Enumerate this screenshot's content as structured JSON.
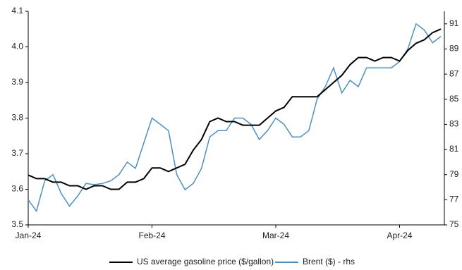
{
  "chart_data": {
    "type": "line",
    "categories": [
      "Jan-24",
      null,
      null,
      null,
      null,
      null,
      null,
      null,
      null,
      null,
      null,
      null,
      null,
      null,
      null,
      "Feb-24",
      null,
      null,
      null,
      null,
      null,
      null,
      null,
      null,
      null,
      null,
      null,
      null,
      null,
      null,
      "Mar-24",
      null,
      null,
      null,
      null,
      null,
      null,
      null,
      null,
      null,
      null,
      null,
      null,
      null,
      null,
      "Apr-24",
      null,
      null,
      null,
      null,
      null
    ],
    "series": [
      {
        "name": "US average gasoline price ($/gallon)",
        "color": "#000000",
        "axis": "y",
        "values": [
          3.64,
          3.63,
          3.63,
          3.62,
          3.62,
          3.61,
          3.61,
          3.6,
          3.61,
          3.61,
          3.6,
          3.6,
          3.62,
          3.62,
          3.63,
          3.66,
          3.66,
          3.65,
          3.66,
          3.67,
          3.71,
          3.74,
          3.79,
          3.8,
          3.79,
          3.79,
          3.78,
          3.78,
          3.78,
          3.8,
          3.82,
          3.83,
          3.86,
          3.86,
          3.86,
          3.86,
          3.88,
          3.9,
          3.92,
          3.95,
          3.97,
          3.97,
          3.96,
          3.97,
          3.97,
          3.96,
          3.99,
          4.01,
          4.02,
          4.04,
          4.05
        ]
      },
      {
        "name": "Brent ($) - rhs",
        "color": "#4f8fc0",
        "axis": "y2",
        "values": [
          77.0,
          76.1,
          78.5,
          79.0,
          77.5,
          76.5,
          77.3,
          78.3,
          78.2,
          78.3,
          78.5,
          79.0,
          80.0,
          79.5,
          81.5,
          83.5,
          83.0,
          82.5,
          79.0,
          77.8,
          78.3,
          79.5,
          82.0,
          82.5,
          82.5,
          83.5,
          83.5,
          83.0,
          81.8,
          82.5,
          83.5,
          83.0,
          82.0,
          82.0,
          82.5,
          85.0,
          86.0,
          87.5,
          85.5,
          86.5,
          86.0,
          87.5,
          87.5,
          87.5,
          87.5,
          88.0,
          89.0,
          91.0,
          90.5,
          89.5,
          90.0
        ]
      }
    ],
    "ylim": [
      3.5,
      4.1
    ],
    "yticks": [
      3.5,
      3.6,
      3.7,
      3.8,
      3.9,
      {
        "value": 4.0,
        "label": "4.0"
      },
      4.1
    ],
    "y2lim": [
      75,
      92
    ],
    "y2ticks": [
      75,
      77,
      79,
      81,
      83,
      85,
      87,
      89,
      91
    ],
    "grid": false,
    "legend": "bottom"
  }
}
